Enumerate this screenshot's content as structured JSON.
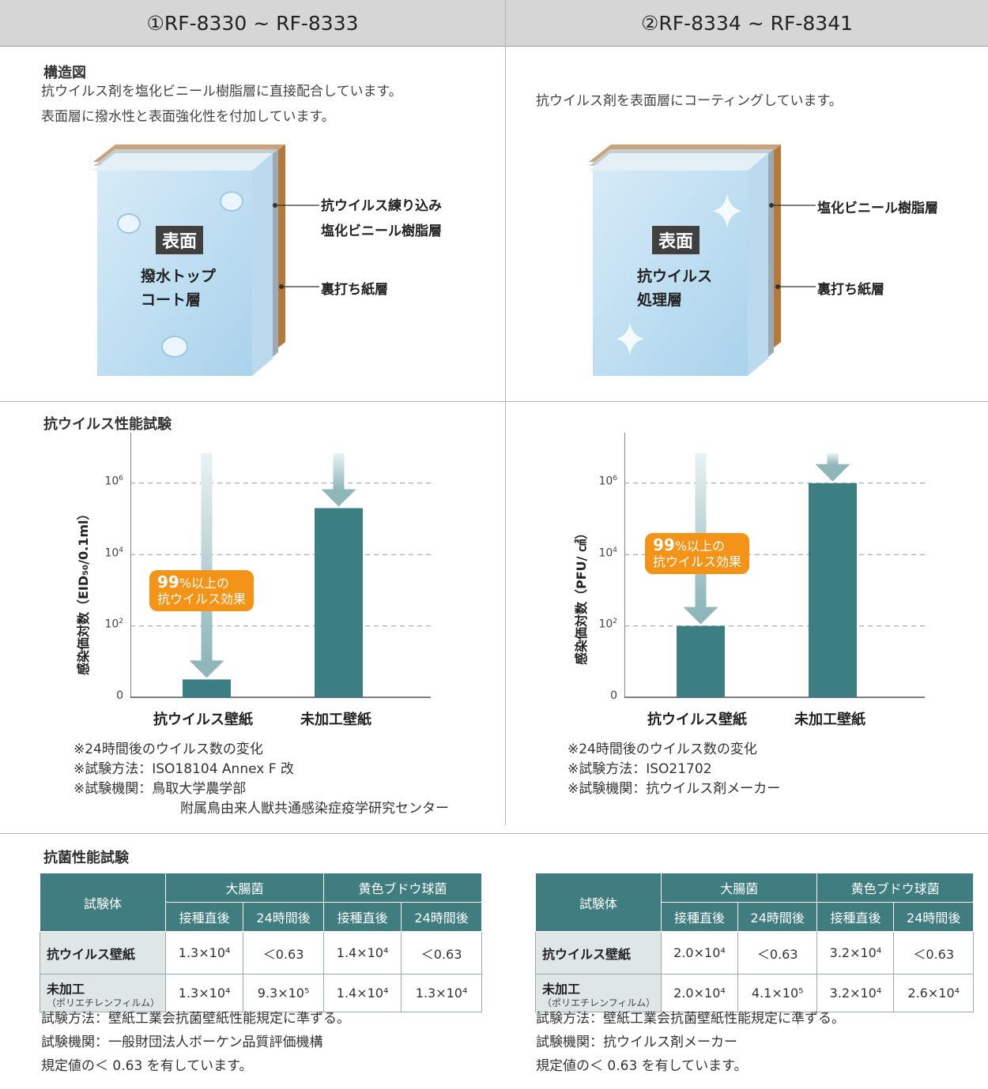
{
  "header": {
    "col1": "①RF-8330 ~ RF-8333",
    "col2": "②RF-8334 ~ RF-8341"
  },
  "structure": {
    "title": "構造図",
    "col1": {
      "desc1": "抗ウイルス剤を塩化ビニール樹脂層に直接配合しています。",
      "desc2": "表面層に撥水性と表面強化性を付加しています。",
      "face_tag": "表面",
      "face_line1": "撥水トップ",
      "face_line2": "コート層",
      "layer1_line1": "抗ウイルス練り込み",
      "layer1_line2": "塩化ビニール樹脂層",
      "layer2": "裏打ち紙層"
    },
    "col2": {
      "desc1": "抗ウイルス剤を表面層にコーティングしています。",
      "face_tag": "表面",
      "face_line1": "抗ウイルス",
      "face_line2": "処理層",
      "layer1": "塩化ビニール樹脂層",
      "layer2": "裏打ち紙層"
    }
  },
  "antivirus": {
    "title": "抗ウイルス性能試験",
    "callout_big": "99",
    "callout_rest": "%以上の",
    "callout_line2": "抗ウイルス効果",
    "col1": {
      "ylabel": "感染価対数（EID₅₀/0.1ml）",
      "notes": [
        "※24時間後のウイルス数の変化",
        "※試験方法：ISO18104 Annex F 改",
        "※試験機関：鳥取大学農学部",
        "附属鳥由来人獣共通感染症疫学研究センター"
      ]
    },
    "col2": {
      "ylabel": "感染価対数（PFU/ ㎠）",
      "notes": [
        "※24時間後のウイルス数の変化",
        "※試験方法：ISO21702",
        "※試験機関：抗ウイルス剤メーカー"
      ]
    }
  },
  "chart_data": [
    {
      "type": "bar",
      "categories": [
        "抗ウイルス壁紙",
        "未加工壁紙"
      ],
      "values": [
        0.5,
        5.3
      ],
      "yticks": [
        "0",
        "10²",
        "10⁴",
        "10⁶"
      ],
      "ylabel": "感染価対数（EID₅₀/0.1ml）",
      "scale": "log10",
      "ylim": [
        0,
        6.5
      ],
      "color": "#3b7f82"
    },
    {
      "type": "bar",
      "categories": [
        "抗ウイルス壁紙",
        "未加工壁紙"
      ],
      "values": [
        2.0,
        6.0
      ],
      "yticks": [
        "0",
        "10²",
        "10⁴",
        "10⁶"
      ],
      "ylabel": "感染価対数（PFU/ ㎠）",
      "scale": "log10",
      "ylim": [
        0,
        6.5
      ],
      "color": "#3b7f82"
    }
  ],
  "antibacterial": {
    "title": "抗菌性能試験",
    "head_specimen": "試験体",
    "head_ecoli": "大腸菌",
    "head_staph": "黄色ブドウ球菌",
    "sub_immediate": "接種直後",
    "sub_24h": "24時間後",
    "row1_label": "抗ウイルス壁紙",
    "row2_label": "未加工",
    "row2_sub": "（ポリエチレンフィルム）",
    "col1": {
      "r1": [
        "1.3×10⁴",
        "＜0.63",
        "1.4×10⁴",
        "＜0.63"
      ],
      "r2": [
        "1.3×10⁴",
        "9.3×10⁵",
        "1.4×10⁴",
        "1.3×10⁴"
      ],
      "notes": [
        "試験方法：壁紙工業会抗菌壁紙性能規定に準ずる。",
        "試験機関：一般財団法人ボーケン品質評価機構",
        "規定値の＜ 0.63 を有しています。"
      ]
    },
    "col2": {
      "r1": [
        "2.0×10⁴",
        "＜0.63",
        "3.2×10⁴",
        "＜0.63"
      ],
      "r2": [
        "2.0×10⁴",
        "4.1×10⁵",
        "3.2×10⁴",
        "2.6×10⁴"
      ],
      "notes": [
        "試験方法：壁紙工業会抗菌壁紙性能規定に準ずる。",
        "試験機関：抗ウイルス剤メーカー",
        "規定値の＜ 0.63 を有しています。"
      ]
    }
  }
}
